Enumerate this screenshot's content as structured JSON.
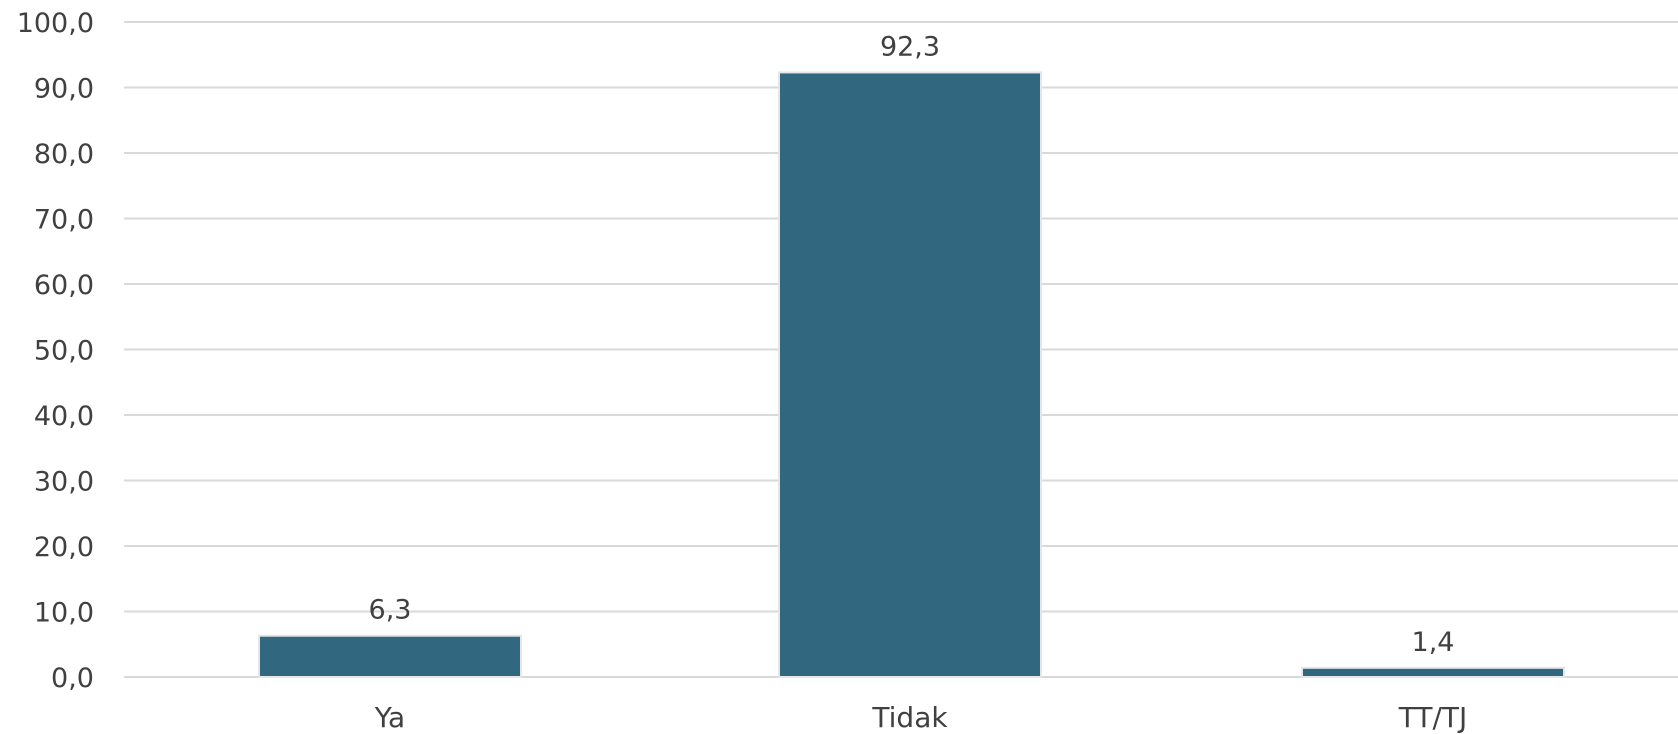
{
  "chart_data": {
    "type": "bar",
    "categories": [
      "Ya",
      "Tidak",
      "TT/TJ"
    ],
    "values": [
      6.3,
      92.3,
      1.4
    ],
    "value_labels": [
      "6,3",
      "92,3",
      "1,4"
    ],
    "title": "",
    "xlabel": "",
    "ylabel": "",
    "ylim": [
      0,
      100
    ],
    "y_ticks": [
      0,
      10,
      20,
      30,
      40,
      50,
      60,
      70,
      80,
      90,
      100
    ],
    "y_tick_labels": [
      "0,0",
      "10,0",
      "20,0",
      "30,0",
      "40,0",
      "50,0",
      "60,0",
      "70,0",
      "80,0",
      "90,0",
      "100,0"
    ],
    "grid": true,
    "legend": "none",
    "bar_color": "#31687f",
    "grid_color": "#d9d9d9",
    "text_color": "#404040"
  }
}
